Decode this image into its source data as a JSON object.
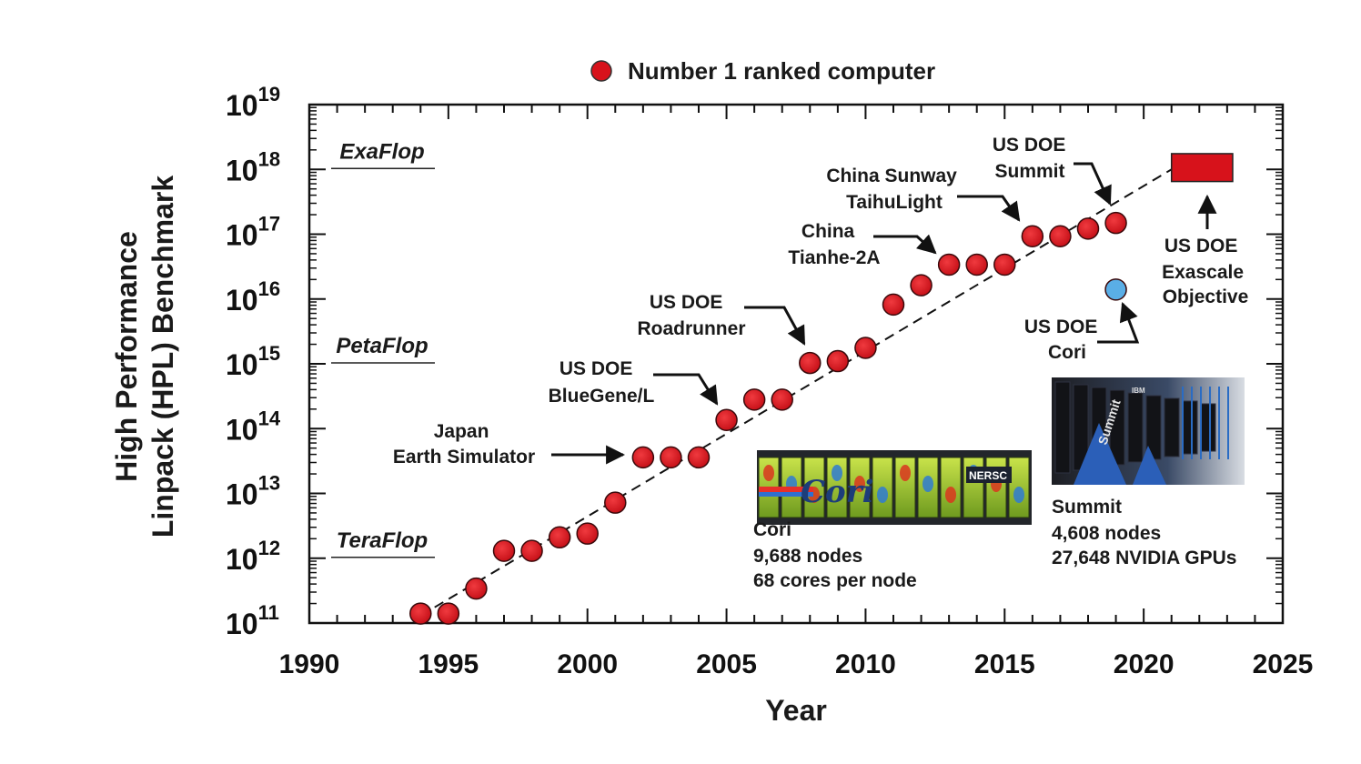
{
  "chart_data": {
    "type": "scatter",
    "title": "",
    "xlabel": "Year",
    "ylabel_lines": [
      "High Performance",
      "Linpack (HPL) Benchmark"
    ],
    "xlim": [
      1990,
      2025
    ],
    "ylim_log10": [
      11,
      19
    ],
    "y_scale": "log",
    "x_ticks": [
      1990,
      1995,
      2000,
      2005,
      2010,
      2015,
      2020,
      2025
    ],
    "y_ticks_exponents": [
      11,
      12,
      13,
      14,
      15,
      16,
      17,
      18,
      19
    ],
    "y_tick_base": "10",
    "legend": {
      "label": "Number 1 ranked computer",
      "placement": "top-center",
      "marker_color": "#d7121b"
    },
    "series": [
      {
        "name": "Number 1 ranked computer",
        "color": "#d7121b",
        "x": [
          1994,
          1995,
          1996,
          1997,
          1998,
          1999,
          2000,
          2001,
          2002,
          2003,
          2004,
          2005,
          2006,
          2007,
          2008,
          2009,
          2010,
          2011,
          2012,
          2013,
          2014,
          2015,
          2016,
          2017,
          2018,
          2019
        ],
        "y": [
          140000000000.0,
          140000000000.0,
          340000000000.0,
          1300000000000.0,
          1300000000000.0,
          2100000000000.0,
          2400000000000.0,
          7200000000000.0,
          36000000000000.0,
          36000000000000.0,
          36000000000000.0,
          136000000000000.0,
          280000000000000.0,
          280000000000000.0,
          1030000000000000.0,
          1100000000000000.0,
          1760000000000000.0,
          8200000000000000.0,
          1.63e+16,
          3.39e+16,
          3.39e+16,
          3.39e+16,
          9.3e+16,
          9.3e+16,
          1.22e+17,
          1.49e+17
        ]
      },
      {
        "name": "US DOE Cori",
        "color": "#5aaee6",
        "x": [
          2019
        ],
        "y": [
          1.4e+16
        ]
      }
    ],
    "trend_line": {
      "x": [
        1994,
        2021
      ],
      "y": [
        130000000000.0,
        1e+18
      ],
      "style": "dashed"
    },
    "exascale_objective": {
      "x": [
        2021,
        2023.2
      ],
      "y": [
        6.5e+17,
        1.75e+18
      ],
      "color": "#d7121b"
    },
    "performance_levels": [
      {
        "label": "ExaFlop",
        "y": 1e+18
      },
      {
        "label": "PetaFlop",
        "y": 1000000000000000.0
      },
      {
        "label": "TeraFlop",
        "y": 1000000000000.0
      }
    ],
    "annotations": [
      {
        "lines": [
          "Japan",
          "Earth Simulator"
        ]
      },
      {
        "lines": [
          "US DOE",
          "BlueGene/L"
        ]
      },
      {
        "lines": [
          "US DOE",
          "Roadrunner"
        ]
      },
      {
        "lines": [
          "China",
          "Tianhe-2A"
        ]
      },
      {
        "lines": [
          "China Sunway",
          "TaihuLight"
        ]
      },
      {
        "lines": [
          "US DOE",
          "Summit"
        ]
      },
      {
        "lines": [
          "US DOE",
          "Exascale",
          "Objective"
        ]
      },
      {
        "lines": [
          "US DOE",
          "Cori"
        ]
      }
    ],
    "photo_captions": [
      {
        "lines": [
          "Cori",
          "9,688 nodes",
          "68 cores per node"
        ],
        "photo_text": "Cori",
        "photo_badge": "NERSC"
      },
      {
        "lines": [
          "Summit",
          "4,608 nodes",
          "27,648 NVIDIA GPUs"
        ],
        "photo_text": "Summit",
        "photo_badge": "IBM"
      }
    ]
  }
}
